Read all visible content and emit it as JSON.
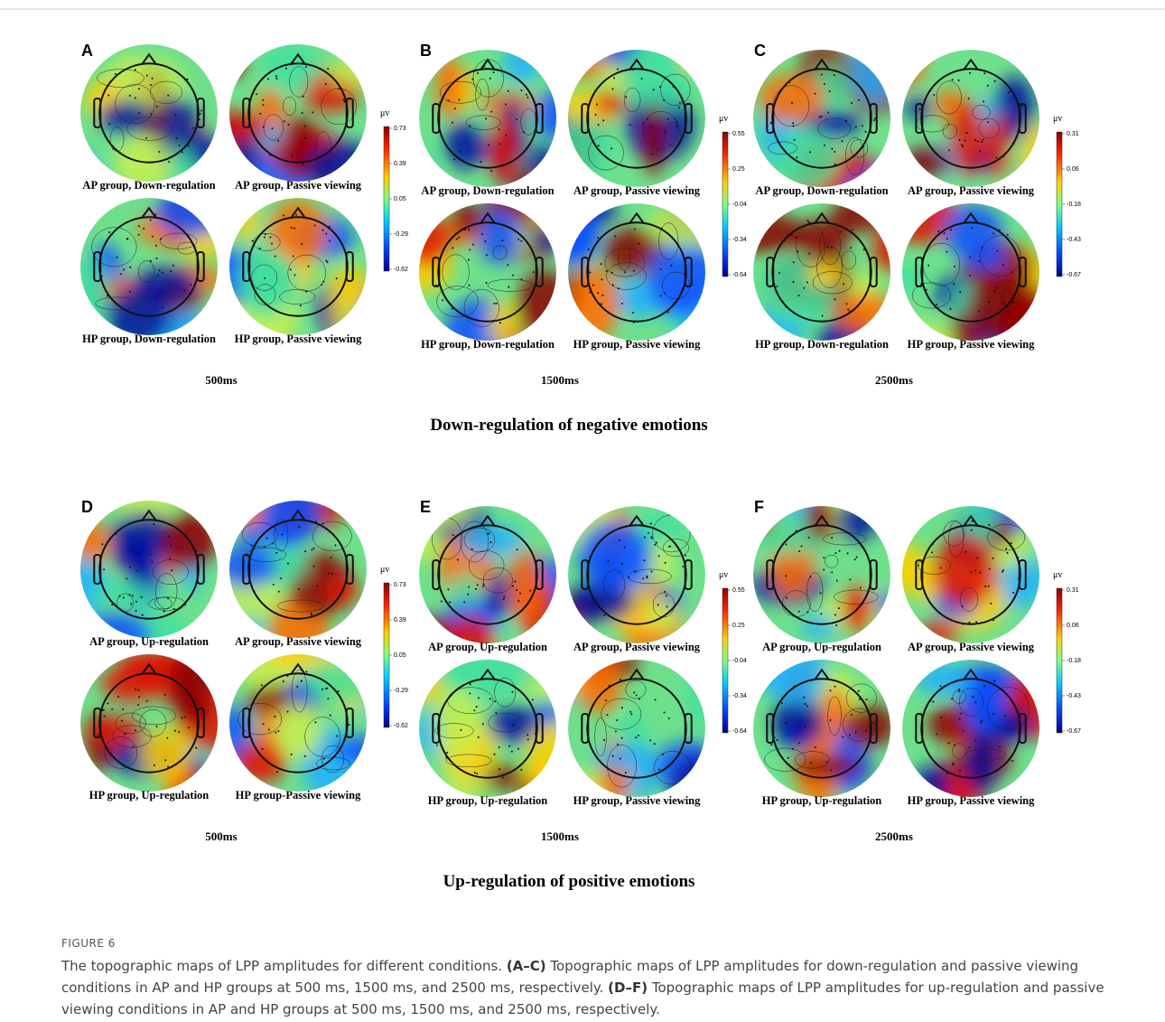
{
  "sections": [
    {
      "title": "Down-regulation of negative emotions",
      "panels": [
        {
          "letter": "A",
          "maps": [
            "AP group, Down-regulation",
            "AP group, Passive viewing",
            "HP group, Down-regulation",
            "HP group, Passive viewing"
          ],
          "colorbar": {
            "unit": "μv",
            "ticks": [
              "0.73",
              "0.39",
              "0.05",
              "-0.29",
              "-0.62"
            ]
          },
          "time": "500ms"
        },
        {
          "letter": "B",
          "maps": [
            "AP group, Down-regulation",
            "AP group, Passive viewing",
            "HP group, Down-regulation",
            "HP group, Passive viewing"
          ],
          "colorbar": {
            "unit": "μv",
            "ticks": [
              "0.55",
              "0.25",
              "-0.04",
              "-0.34",
              "-0.64"
            ]
          },
          "time": "1500ms"
        },
        {
          "letter": "C",
          "maps": [
            "AP group, Down-regulation",
            "AP group, Passive viewing",
            "HP group, Down-regulation",
            "HP group, Passive viewing"
          ],
          "colorbar": {
            "unit": "μv",
            "ticks": [
              "0.31",
              "0.06",
              "-0.18",
              "-0.43",
              "-0.67"
            ]
          },
          "time": "2500ms"
        }
      ]
    },
    {
      "title": "Up-regulation of positive emotions",
      "panels": [
        {
          "letter": "D",
          "maps": [
            "AP group, Up-regulation",
            "AP group, Passive viewing",
            "HP group, Up-regulation",
            "HP group-Passive viewing"
          ],
          "colorbar": {
            "unit": "μv",
            "ticks": [
              "0.73",
              "0.39",
              "0.05",
              "-0.29",
              "-0.62"
            ]
          },
          "time": "500ms"
        },
        {
          "letter": "E",
          "maps": [
            "AP group, Up-regulation",
            "AP group, Passive viewing",
            "HP group, Up-regulation",
            "HP group, Passive viewing"
          ],
          "colorbar": {
            "unit": "μv",
            "ticks": [
              "0.55",
              "0.25",
              "-0.04",
              "-0.34",
              "-0.64"
            ]
          },
          "time": "1500ms"
        },
        {
          "letter": "F",
          "maps": [
            "AP group, Up-regulation",
            "AP group, Passive viewing",
            "HP group, Up-regulation",
            "HP group, Passive viewing"
          ],
          "colorbar": {
            "unit": "μv",
            "ticks": [
              "0.31",
              "0.06",
              "-0.18",
              "-0.43",
              "-0.67"
            ]
          },
          "time": "2500ms"
        }
      ]
    }
  ],
  "figure": {
    "label": "FIGURE 6",
    "caption": [
      {
        "text": "The topographic maps of LPP amplitudes for different conditions. "
      },
      {
        "text": "(A–C)",
        "bold": true
      },
      {
        "text": " Topographic maps of LPP amplitudes for down-regulation and passive viewing conditions in AP and HP groups at 500 ms, 1500 ms, and 2500 ms, respectively. "
      },
      {
        "text": "(D–F)",
        "bold": true
      },
      {
        "text": " Topographic maps of LPP amplitudes for up-regulation and passive viewing conditions in AP and HP groups at 500 ms, 1500 ms, and 2500 ms, respectively."
      }
    ]
  }
}
